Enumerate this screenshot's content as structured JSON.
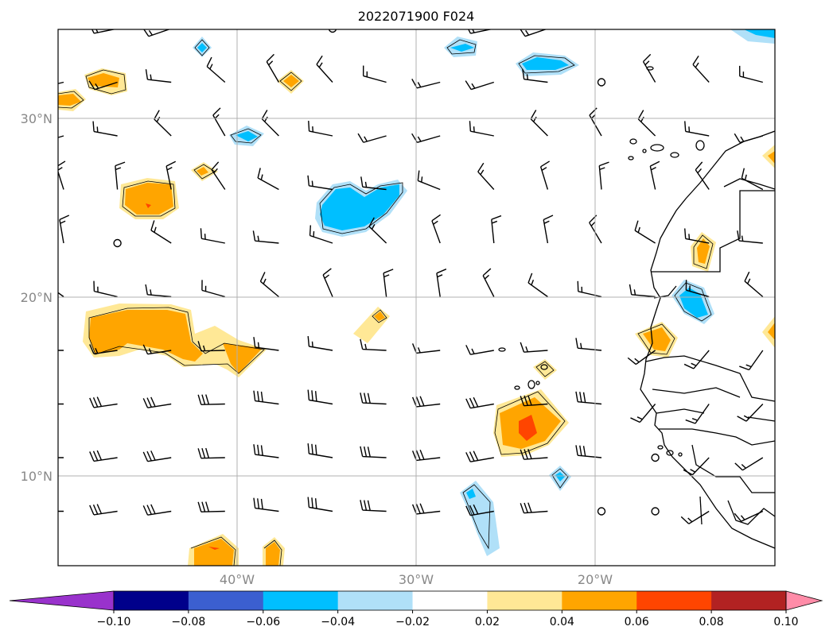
{
  "title": "2022071900 F024",
  "map": {
    "lon_range": [
      -50,
      -10
    ],
    "lat_range": [
      5,
      35
    ],
    "lat_grid": [
      10,
      20,
      30
    ],
    "lon_grid": [
      -40,
      -30,
      -20
    ],
    "lat_labels": [
      "10°N",
      "20°N",
      "30°N"
    ],
    "lon_labels": [
      "40°W",
      "30°W",
      "20°W"
    ],
    "grid": true,
    "coastline_color": "#000000"
  },
  "colorbar": {
    "orientation": "horizontal",
    "extend": "both",
    "ticks": [
      "−0.10",
      "−0.08",
      "−0.06",
      "−0.04",
      "−0.02",
      "0.02",
      "0.04",
      "0.06",
      "0.08",
      "0.10"
    ],
    "levels": [
      -0.1,
      -0.08,
      -0.06,
      -0.04,
      -0.02,
      0.02,
      0.04,
      0.06,
      0.08,
      0.1
    ],
    "colors": [
      "#9932cc",
      "#00008b",
      "#3b5fd0",
      "#00bfff",
      "#b0e0f8",
      "#ffffff",
      "#ffe896",
      "#ffa500",
      "#ff4500",
      "#b22222",
      "#ff8ca8"
    ]
  },
  "chart_data": {
    "type": "heatmap",
    "title": "2022071900 F024",
    "xlabel": "",
    "ylabel": "",
    "xlim": [
      -50,
      -10
    ],
    "ylim": [
      5,
      35
    ],
    "anomaly_regions": [
      {
        "lon": -46.5,
        "lat": 25.5,
        "value": 0.05
      },
      {
        "lon": -45.0,
        "lat": 18.3,
        "value": 0.05
      },
      {
        "lon": -40.5,
        "lat": 17.3,
        "value": 0.04
      },
      {
        "lon": -48.5,
        "lat": 32.0,
        "value": 0.04
      },
      {
        "lon": -50.0,
        "lat": 31.0,
        "value": 0.04
      },
      {
        "lon": -39.5,
        "lat": 5.8,
        "value": 0.06
      },
      {
        "lon": -37.5,
        "lat": 5.6,
        "value": 0.04
      },
      {
        "lon": -37.0,
        "lat": 32.0,
        "value": 0.05
      },
      {
        "lon": -42.0,
        "lat": 27.0,
        "value": 0.03
      },
      {
        "lon": -33.0,
        "lat": 18.5,
        "value": 0.03
      },
      {
        "lon": -24.2,
        "lat": 13.0,
        "value": 0.06
      },
      {
        "lon": -22.5,
        "lat": 16.2,
        "value": 0.03
      },
      {
        "lon": -13.5,
        "lat": 17.6,
        "value": 0.04
      },
      {
        "lon": -14.0,
        "lat": 22.6,
        "value": 0.04
      },
      {
        "lon": -10.0,
        "lat": 28.0,
        "value": 0.03
      },
      {
        "lon": -10.0,
        "lat": 18.0,
        "value": 0.04
      },
      {
        "lon": -32.8,
        "lat": 24.8,
        "value": -0.05
      },
      {
        "lon": -38.8,
        "lat": 29.0,
        "value": -0.03
      },
      {
        "lon": -42.0,
        "lat": 33.9,
        "value": -0.03
      },
      {
        "lon": -27.3,
        "lat": 34.0,
        "value": -0.05
      },
      {
        "lon": -23.0,
        "lat": 33.0,
        "value": -0.05
      },
      {
        "lon": -11.0,
        "lat": 34.8,
        "value": -0.05
      },
      {
        "lon": -26.3,
        "lat": 7.8,
        "value": -0.03
      },
      {
        "lon": -21.8,
        "lat": 9.9,
        "value": -0.05
      },
      {
        "lon": -13.8,
        "lat": 19.8,
        "value": -0.05
      }
    ],
    "wind_barbs": "grid spacing 3 degrees; NE trade winds in south-east, westerly/north-westerly flow in north"
  }
}
